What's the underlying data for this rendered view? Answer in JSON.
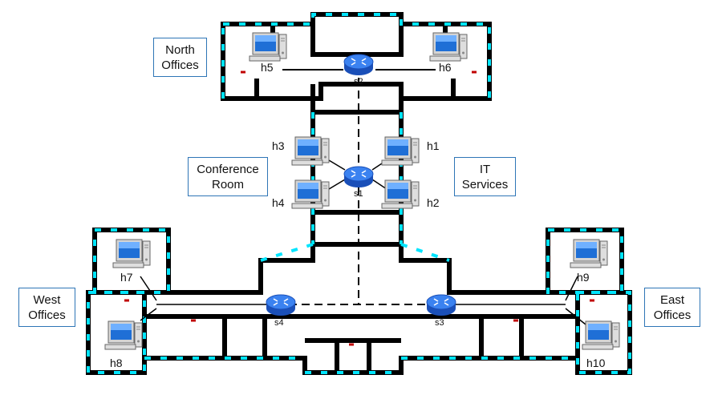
{
  "areas": {
    "north": "North\nOffices",
    "conference": "Conference\nRoom",
    "it": "IT\nServices",
    "west": "West\nOffices",
    "east": "East\nOffices"
  },
  "hosts": {
    "h1": "h1",
    "h2": "h2",
    "h3": "h3",
    "h4": "h4",
    "h5": "h5",
    "h6": "h6",
    "h7": "h7",
    "h8": "h8",
    "h9": "h9",
    "h10": "h10"
  },
  "switches": {
    "s1": "s1",
    "s2": "s2",
    "s3": "s3",
    "s4": "s4"
  },
  "colors": {
    "wall": "#000000",
    "window": "#00e5ff",
    "door": "#c00000",
    "switch": "#2f6fe8",
    "label_border": "#2e75b6"
  }
}
